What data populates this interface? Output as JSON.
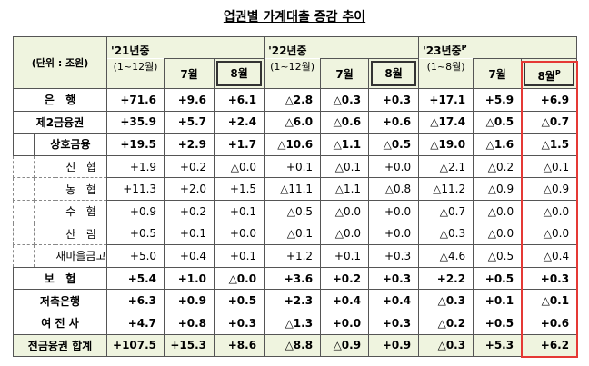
{
  "title": "업권별 가계대출 증감 추이",
  "table": {
    "unit": "(단위 : 조원)",
    "groups": [
      {
        "year": "'21년중",
        "sup": null,
        "period": "(1~12월)",
        "months": [
          "7월",
          "8월"
        ],
        "month_sup": [
          null,
          null
        ]
      },
      {
        "year": "'22년중",
        "sup": null,
        "period": "(1~12월)",
        "months": [
          "7월",
          "8월"
        ],
        "month_sup": [
          null,
          null
        ]
      },
      {
        "year": "'23년중",
        "sup": "P",
        "period": "(1~8월)",
        "months": [
          "7월",
          "8월"
        ],
        "month_sup": [
          null,
          "P"
        ]
      }
    ],
    "rows": [
      {
        "label": "은   행",
        "level": 0,
        "bold": true,
        "cells": [
          "+71.6",
          "+9.6",
          "+6.1",
          "△2.8",
          "△0.3",
          "+0.3",
          "+17.1",
          "+5.9",
          "+6.9"
        ]
      },
      {
        "label": "제2금융권",
        "level": 0,
        "bold": true,
        "cells": [
          "+35.9",
          "+5.7",
          "+2.4",
          "△6.0",
          "△0.6",
          "+0.6",
          "△17.4",
          "△0.5",
          "△0.7"
        ]
      },
      {
        "label": "상호금융",
        "level": 1,
        "bold": true,
        "cells": [
          "+19.5",
          "+2.9",
          "+1.7",
          "△10.6",
          "△1.1",
          "△0.5",
          "△19.0",
          "△1.6",
          "△1.5"
        ]
      },
      {
        "label": "신   협",
        "level": 2,
        "bold": false,
        "cells": [
          "+1.9",
          "+0.2",
          "△0.0",
          "+0.1",
          "△0.1",
          "+0.0",
          "△2.1",
          "△0.2",
          "△0.1"
        ]
      },
      {
        "label": "농   협",
        "level": 2,
        "bold": false,
        "cells": [
          "+11.3",
          "+2.0",
          "+1.5",
          "△11.1",
          "△1.1",
          "△0.8",
          "△11.2",
          "△0.9",
          "△0.9"
        ]
      },
      {
        "label": "수   협",
        "level": 2,
        "bold": false,
        "cells": [
          "+0.9",
          "+0.2",
          "+0.1",
          "△0.5",
          "△0.0",
          "+0.0",
          "△0.7",
          "△0.0",
          "△0.0"
        ]
      },
      {
        "label": "산   림",
        "level": 2,
        "bold": false,
        "cells": [
          "+0.5",
          "+0.1",
          "+0.0",
          "△0.1",
          "△0.0",
          "+0.0",
          "△0.3",
          "△0.0",
          "△0.0"
        ]
      },
      {
        "label": "새마을금고",
        "level": 2,
        "bold": false,
        "cells": [
          "+5.0",
          "+0.4",
          "+0.1",
          "+1.2",
          "+0.1",
          "+0.3",
          "△4.6",
          "△0.5",
          "△0.4"
        ]
      },
      {
        "label": "보   험",
        "level": 0,
        "bold": true,
        "cells": [
          "+5.4",
          "+1.0",
          "△0.0",
          "+3.6",
          "+0.2",
          "+0.3",
          "+2.2",
          "+0.5",
          "+0.3"
        ]
      },
      {
        "label": "저축은행",
        "level": 0,
        "bold": true,
        "cells": [
          "+6.3",
          "+0.9",
          "+0.5",
          "+2.3",
          "+0.4",
          "+0.4",
          "△0.3",
          "+0.1",
          "△0.1"
        ]
      },
      {
        "label": "여 전 사",
        "level": 0,
        "bold": true,
        "cells": [
          "+4.7",
          "+0.8",
          "+0.3",
          "△1.3",
          "+0.0",
          "+0.3",
          "△0.2",
          "+0.5",
          "+0.6"
        ]
      },
      {
        "label": "전금융권 합계",
        "level": 0,
        "bold": true,
        "total": true,
        "cells": [
          "+107.5",
          "+15.3",
          "+8.6",
          "△8.8",
          "△0.9",
          "+0.9",
          "△0.3",
          "+5.3",
          "+6.2"
        ]
      }
    ]
  }
}
